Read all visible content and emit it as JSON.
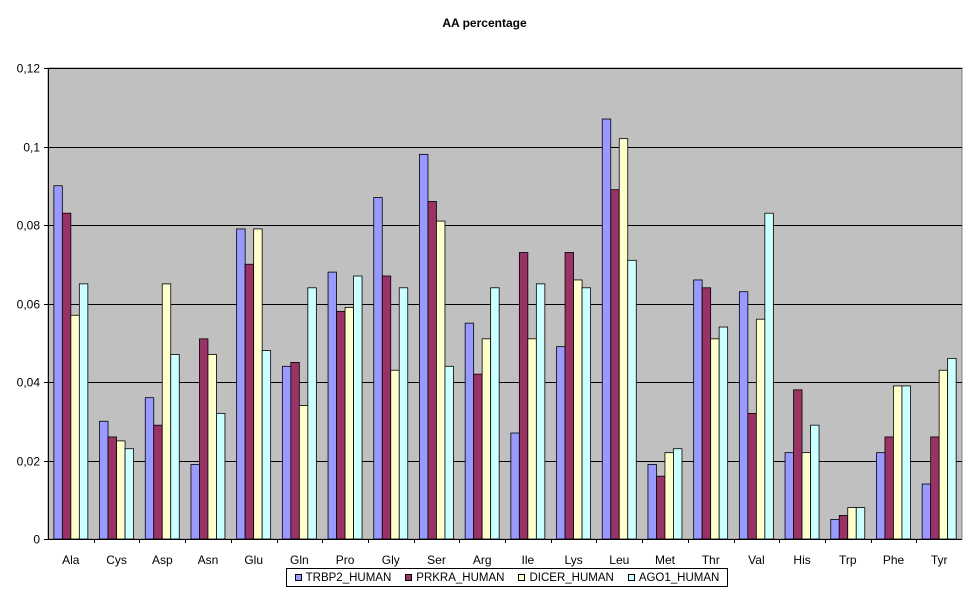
{
  "chart_data": {
    "type": "bar",
    "title": "AA percentage",
    "xlabel": "",
    "ylabel": "",
    "ylim": [
      0,
      0.12
    ],
    "yticks": [
      "0",
      "0,02",
      "0,04",
      "0,06",
      "0,08",
      "0,1",
      "0,12"
    ],
    "grid": true,
    "legend_position": "bottom",
    "categories": [
      "Ala",
      "Cys",
      "Asp",
      "Asn",
      "Glu",
      "Gln",
      "Pro",
      "Gly",
      "Ser",
      "Arg",
      "Ile",
      "Lys",
      "Leu",
      "Met",
      "Thr",
      "Val",
      "His",
      "Trp",
      "Phe",
      "Tyr"
    ],
    "series": [
      {
        "name": "TRBP2_HUMAN",
        "color": "#9999ff",
        "values": [
          0.09,
          0.03,
          0.036,
          0.019,
          0.079,
          0.044,
          0.068,
          0.087,
          0.098,
          0.055,
          0.027,
          0.049,
          0.107,
          0.019,
          0.066,
          0.063,
          0.022,
          0.005,
          0.022,
          0.014
        ]
      },
      {
        "name": "PRKRA_HUMAN",
        "color": "#993366",
        "values": [
          0.083,
          0.026,
          0.029,
          0.051,
          0.07,
          0.045,
          0.058,
          0.067,
          0.086,
          0.042,
          0.073,
          0.073,
          0.089,
          0.016,
          0.064,
          0.032,
          0.038,
          0.006,
          0.026,
          0.026
        ]
      },
      {
        "name": "DICER_HUMAN",
        "color": "#ffffcc",
        "values": [
          0.057,
          0.025,
          0.065,
          0.047,
          0.079,
          0.034,
          0.059,
          0.043,
          0.081,
          0.051,
          0.051,
          0.066,
          0.102,
          0.022,
          0.051,
          0.056,
          0.022,
          0.008,
          0.039,
          0.043
        ]
      },
      {
        "name": "AGO1_HUMAN",
        "color": "#ccffff",
        "values": [
          0.065,
          0.023,
          0.047,
          0.032,
          0.048,
          0.064,
          0.067,
          0.064,
          0.044,
          0.064,
          0.065,
          0.064,
          0.071,
          0.023,
          0.054,
          0.083,
          0.029,
          0.008,
          0.039,
          0.046
        ]
      }
    ],
    "plot_background": "#c0c0c0"
  }
}
